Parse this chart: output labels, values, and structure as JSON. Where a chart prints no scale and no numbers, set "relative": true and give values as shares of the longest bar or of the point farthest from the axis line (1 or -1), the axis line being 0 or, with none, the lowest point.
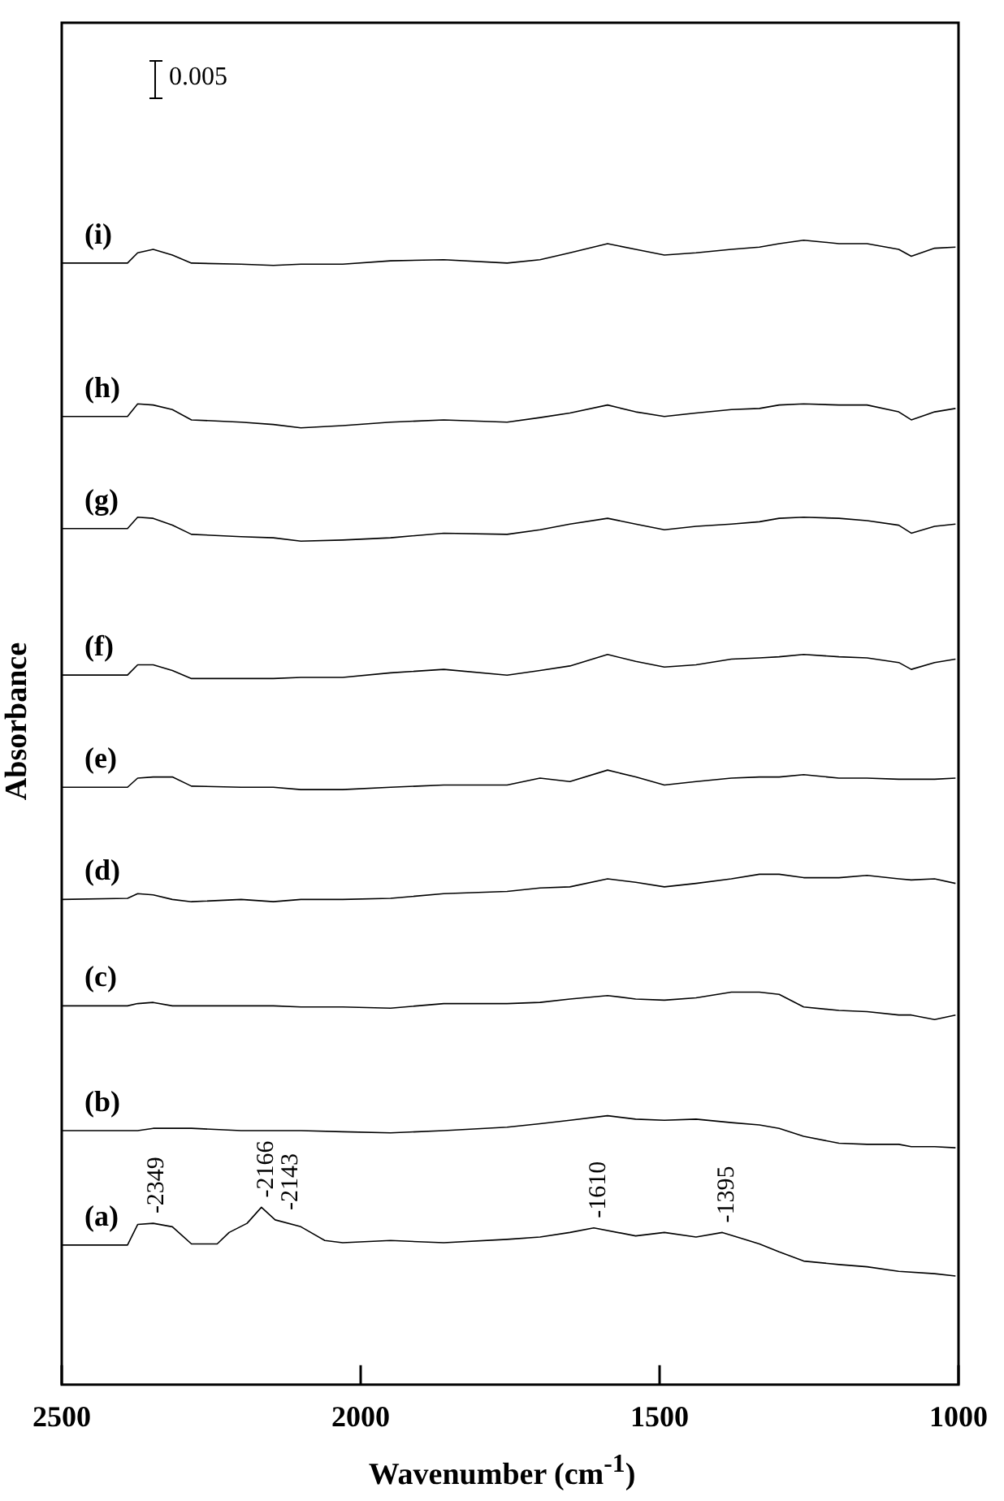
{
  "chart_data": {
    "type": "line",
    "relative": true,
    "xlabel": "Wavenumber (cm$^{-1}$)",
    "ylabel": "Absorbance",
    "xlim": [
      2500,
      1000
    ],
    "xticks": [
      2500,
      2000,
      1500,
      1000
    ],
    "x": [
      2500,
      2390,
      2373,
      2347,
      2315,
      2283,
      2200,
      2146,
      2100,
      2030,
      1950,
      1861,
      1755,
      1700,
      1650,
      1587,
      1540,
      1492,
      1439,
      1380,
      1333,
      1300,
      1259,
      1200,
      1153,
      1100,
      1079,
      1040,
      1005
    ],
    "series": [
      {
        "name": "(a)",
        "color": "#000000",
        "x": [
          2500,
          2390,
          2373,
          2347,
          2315,
          2283,
          2240,
          2220,
          2190,
          2166,
          2143,
          2100,
          2060,
          2030,
          1950,
          1861,
          1755,
          1700,
          1650,
          1610,
          1540,
          1492,
          1439,
          1395,
          1333,
          1300,
          1259,
          1200,
          1153,
          1100,
          1040,
          1005
        ],
        "values": [
          0.122,
          0.122,
          0.14,
          0.141,
          0.138,
          0.123,
          0.123,
          0.133,
          0.141,
          0.155,
          0.144,
          0.138,
          0.126,
          0.124,
          0.126,
          0.124,
          0.127,
          0.129,
          0.133,
          0.137,
          0.13,
          0.133,
          0.129,
          0.133,
          0.123,
          0.116,
          0.108,
          0.105,
          0.103,
          0.099,
          0.097,
          0.095
        ]
      },
      {
        "name": "(b)",
        "color": "#000000",
        "values": [
          0.222,
          0.222,
          0.222,
          0.224,
          0.224,
          0.224,
          0.222,
          0.222,
          0.222,
          0.221,
          0.22,
          0.222,
          0.225,
          0.228,
          0.231,
          0.235,
          0.232,
          0.231,
          0.232,
          0.229,
          0.227,
          0.224,
          0.217,
          0.211,
          0.21,
          0.21,
          0.208,
          0.208,
          0.207
        ]
      },
      {
        "name": "(c)",
        "color": "#000000",
        "values": [
          0.331,
          0.331,
          0.333,
          0.334,
          0.331,
          0.331,
          0.331,
          0.331,
          0.33,
          0.33,
          0.329,
          0.333,
          0.333,
          0.334,
          0.337,
          0.34,
          0.337,
          0.336,
          0.338,
          0.343,
          0.343,
          0.341,
          0.33,
          0.327,
          0.326,
          0.323,
          0.323,
          0.319,
          0.323
        ]
      },
      {
        "name": "(d)",
        "color": "#000000",
        "values": [
          0.424,
          0.425,
          0.429,
          0.428,
          0.424,
          0.422,
          0.424,
          0.422,
          0.424,
          0.424,
          0.425,
          0.429,
          0.431,
          0.434,
          0.435,
          0.442,
          0.439,
          0.435,
          0.438,
          0.442,
          0.446,
          0.446,
          0.443,
          0.443,
          0.445,
          0.442,
          0.441,
          0.442,
          0.438
        ]
      },
      {
        "name": "(e)",
        "color": "#000000",
        "values": [
          0.522,
          0.522,
          0.53,
          0.531,
          0.531,
          0.523,
          0.522,
          0.522,
          0.52,
          0.52,
          0.522,
          0.524,
          0.524,
          0.53,
          0.527,
          0.537,
          0.531,
          0.524,
          0.527,
          0.53,
          0.531,
          0.531,
          0.533,
          0.53,
          0.53,
          0.529,
          0.529,
          0.529,
          0.53
        ]
      },
      {
        "name": "(f)",
        "color": "#000000",
        "values": [
          0.62,
          0.62,
          0.629,
          0.629,
          0.624,
          0.617,
          0.617,
          0.617,
          0.618,
          0.618,
          0.622,
          0.625,
          0.62,
          0.624,
          0.628,
          0.638,
          0.632,
          0.627,
          0.629,
          0.634,
          0.635,
          0.636,
          0.638,
          0.636,
          0.635,
          0.631,
          0.625,
          0.631,
          0.634
        ]
      },
      {
        "name": "(g)",
        "color": "#000000",
        "values": [
          0.748,
          0.748,
          0.758,
          0.757,
          0.751,
          0.743,
          0.741,
          0.74,
          0.737,
          0.738,
          0.74,
          0.744,
          0.743,
          0.747,
          0.752,
          0.757,
          0.752,
          0.747,
          0.75,
          0.752,
          0.754,
          0.757,
          0.758,
          0.757,
          0.755,
          0.751,
          0.744,
          0.75,
          0.752
        ]
      },
      {
        "name": "(h)",
        "color": "#000000",
        "values": [
          0.846,
          0.846,
          0.857,
          0.856,
          0.852,
          0.843,
          0.841,
          0.839,
          0.836,
          0.838,
          0.841,
          0.843,
          0.841,
          0.845,
          0.849,
          0.856,
          0.85,
          0.846,
          0.849,
          0.852,
          0.853,
          0.856,
          0.857,
          0.856,
          0.856,
          0.85,
          0.843,
          0.85,
          0.853
        ]
      },
      {
        "name": "(i)",
        "color": "#000000",
        "values": [
          0.98,
          0.98,
          0.989,
          0.992,
          0.987,
          0.98,
          0.979,
          0.978,
          0.979,
          0.979,
          0.982,
          0.983,
          0.98,
          0.983,
          0.989,
          0.997,
          0.992,
          0.987,
          0.989,
          0.992,
          0.994,
          0.997,
          1,
          0.997,
          0.997,
          0.992,
          0.986,
          0.993,
          0.994
        ]
      }
    ],
    "annotations": [
      "0.005",
      {
        "text": "-2349",
        "x": 2349,
        "y": 0.141
      },
      {
        "text": "-2166",
        "x": 2166,
        "y": 0.155
      },
      {
        "text": "-2143",
        "x": 2143,
        "y": 0.144
      },
      {
        "text": "-1610",
        "x": 1610,
        "y": 0.137
      },
      {
        "text": "-1395",
        "x": 1395,
        "y": 0.133
      }
    ]
  }
}
